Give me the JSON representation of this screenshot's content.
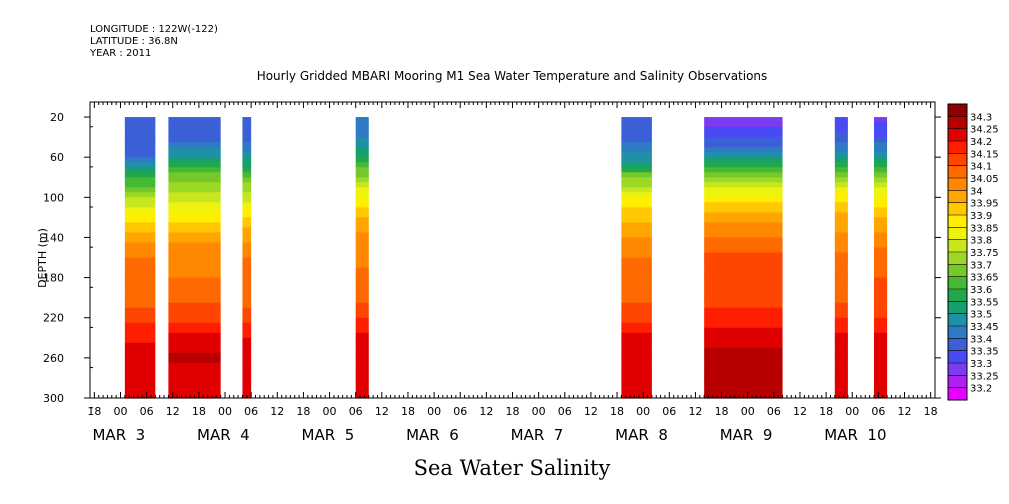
{
  "header": {
    "longitude": "LONGITUDE : 122W(-122)",
    "latitude": "LATITUDE : 36.8N",
    "year": "YEAR : 2011"
  },
  "chart_data": {
    "type": "heatmap",
    "title": "Hourly Gridded MBARI Mooring M1 Sea Water Temperature and Salinity Observations",
    "subtitle": "Sea Water Salinity",
    "ylabel": "DEPTH (m)",
    "xlabel": "",
    "y_range": [
      300,
      5
    ],
    "y_ticks": [
      20,
      60,
      100,
      140,
      180,
      220,
      260,
      300
    ],
    "x_range": [
      "MAR 2 17:00",
      "MAR 10 19:00"
    ],
    "x_hour_ticks": [
      "18",
      "00",
      "06",
      "12",
      "18",
      "00",
      "06",
      "12",
      "18",
      "00",
      "06",
      "12",
      "18",
      "00",
      "06",
      "12",
      "18",
      "00",
      "06",
      "12",
      "18",
      "00",
      "06",
      "12",
      "18",
      "00",
      "06",
      "12",
      "18",
      "00",
      "06",
      "12",
      "18"
    ],
    "x_day_labels": [
      "MAR 3",
      "MAR 4",
      "MAR 5",
      "MAR 6",
      "MAR 7",
      "MAR 8",
      "MAR 9",
      "MAR 10"
    ],
    "colorbar": {
      "levels": [
        33.2,
        33.25,
        33.3,
        33.35,
        33.4,
        33.45,
        33.5,
        33.55,
        33.6,
        33.65,
        33.7,
        33.75,
        33.8,
        33.85,
        33.9,
        33.95,
        34,
        34.05,
        34.1,
        34.15,
        34.2,
        34.25,
        34.3
      ],
      "colors": [
        "#e600ff",
        "#b020f0",
        "#7a3cf0",
        "#4a4af5",
        "#3b5fd6",
        "#2e7ac4",
        "#208fa8",
        "#16a070",
        "#22a84a",
        "#45b835",
        "#74c82a",
        "#9cd826",
        "#c7e61e",
        "#eef20f",
        "#ffee00",
        "#ffc800",
        "#ffa500",
        "#ff8800",
        "#ff6a00",
        "#ff4600",
        "#ff1e00",
        "#e00000",
        "#b80000",
        "#900000"
      ]
    },
    "depths": [
      20,
      40,
      60,
      80,
      100,
      120,
      140,
      160,
      180,
      200,
      220,
      240,
      260,
      280,
      300
    ],
    "segments": [
      {
        "start": "MAR 3 01:00",
        "end": "MAR 3 08:00",
        "profile": [
          33.37,
          33.37,
          33.4,
          33.58,
          33.75,
          33.88,
          33.99,
          34.05,
          34.06,
          34.07,
          34.13,
          34.19,
          34.24,
          34.21,
          34.2
        ]
      },
      {
        "start": "MAR 3 11:00",
        "end": "MAR 3 23:00",
        "profile": [
          33.36,
          33.38,
          33.5,
          33.68,
          33.77,
          33.88,
          33.98,
          34.04,
          34.05,
          34.08,
          34.14,
          34.21,
          34.26,
          34.22,
          34.2
        ]
      },
      {
        "start": "MAR 4 04:00",
        "end": "MAR 4 06:00",
        "profile": [
          33.36,
          33.38,
          33.48,
          33.66,
          33.78,
          33.9,
          33.99,
          34.05,
          34.06,
          34.07,
          34.14,
          34.2,
          34.24,
          34.21,
          34.2
        ]
      },
      {
        "start": "MAR 5 06:00",
        "end": "MAR 5 09:00",
        "profile": [
          33.42,
          33.45,
          33.55,
          33.72,
          33.86,
          33.96,
          34.01,
          34.04,
          34.06,
          34.08,
          34.15,
          34.21,
          34.25,
          34.22,
          34.2
        ]
      },
      {
        "start": "MAR 7 19:00",
        "end": "MAR 8 02:00",
        "profile": [
          33.37,
          33.38,
          33.46,
          33.68,
          33.85,
          33.94,
          34.0,
          34.05,
          34.06,
          34.08,
          34.14,
          34.21,
          34.24,
          34.21,
          34.2
        ]
      },
      {
        "start": "MAR 8 14:00",
        "end": "MAR 9 08:00",
        "profile": [
          33.26,
          33.33,
          33.5,
          33.7,
          33.86,
          33.97,
          34.05,
          34.12,
          34.12,
          34.13,
          34.17,
          34.23,
          34.27,
          34.27,
          34.25
        ]
      },
      {
        "start": "MAR 9 20:00",
        "end": "MAR 9 23:00",
        "profile": [
          33.32,
          33.36,
          33.48,
          33.72,
          33.88,
          33.96,
          34.02,
          34.06,
          34.07,
          34.09,
          34.15,
          34.21,
          34.25,
          34.22,
          34.2
        ]
      },
      {
        "start": "MAR 10 05:00",
        "end": "MAR 10 08:00",
        "profile": [
          33.28,
          33.34,
          33.5,
          33.7,
          33.86,
          33.96,
          34.01,
          34.08,
          34.1,
          34.11,
          34.15,
          34.21,
          34.25,
          34.22,
          34.2
        ]
      }
    ]
  }
}
